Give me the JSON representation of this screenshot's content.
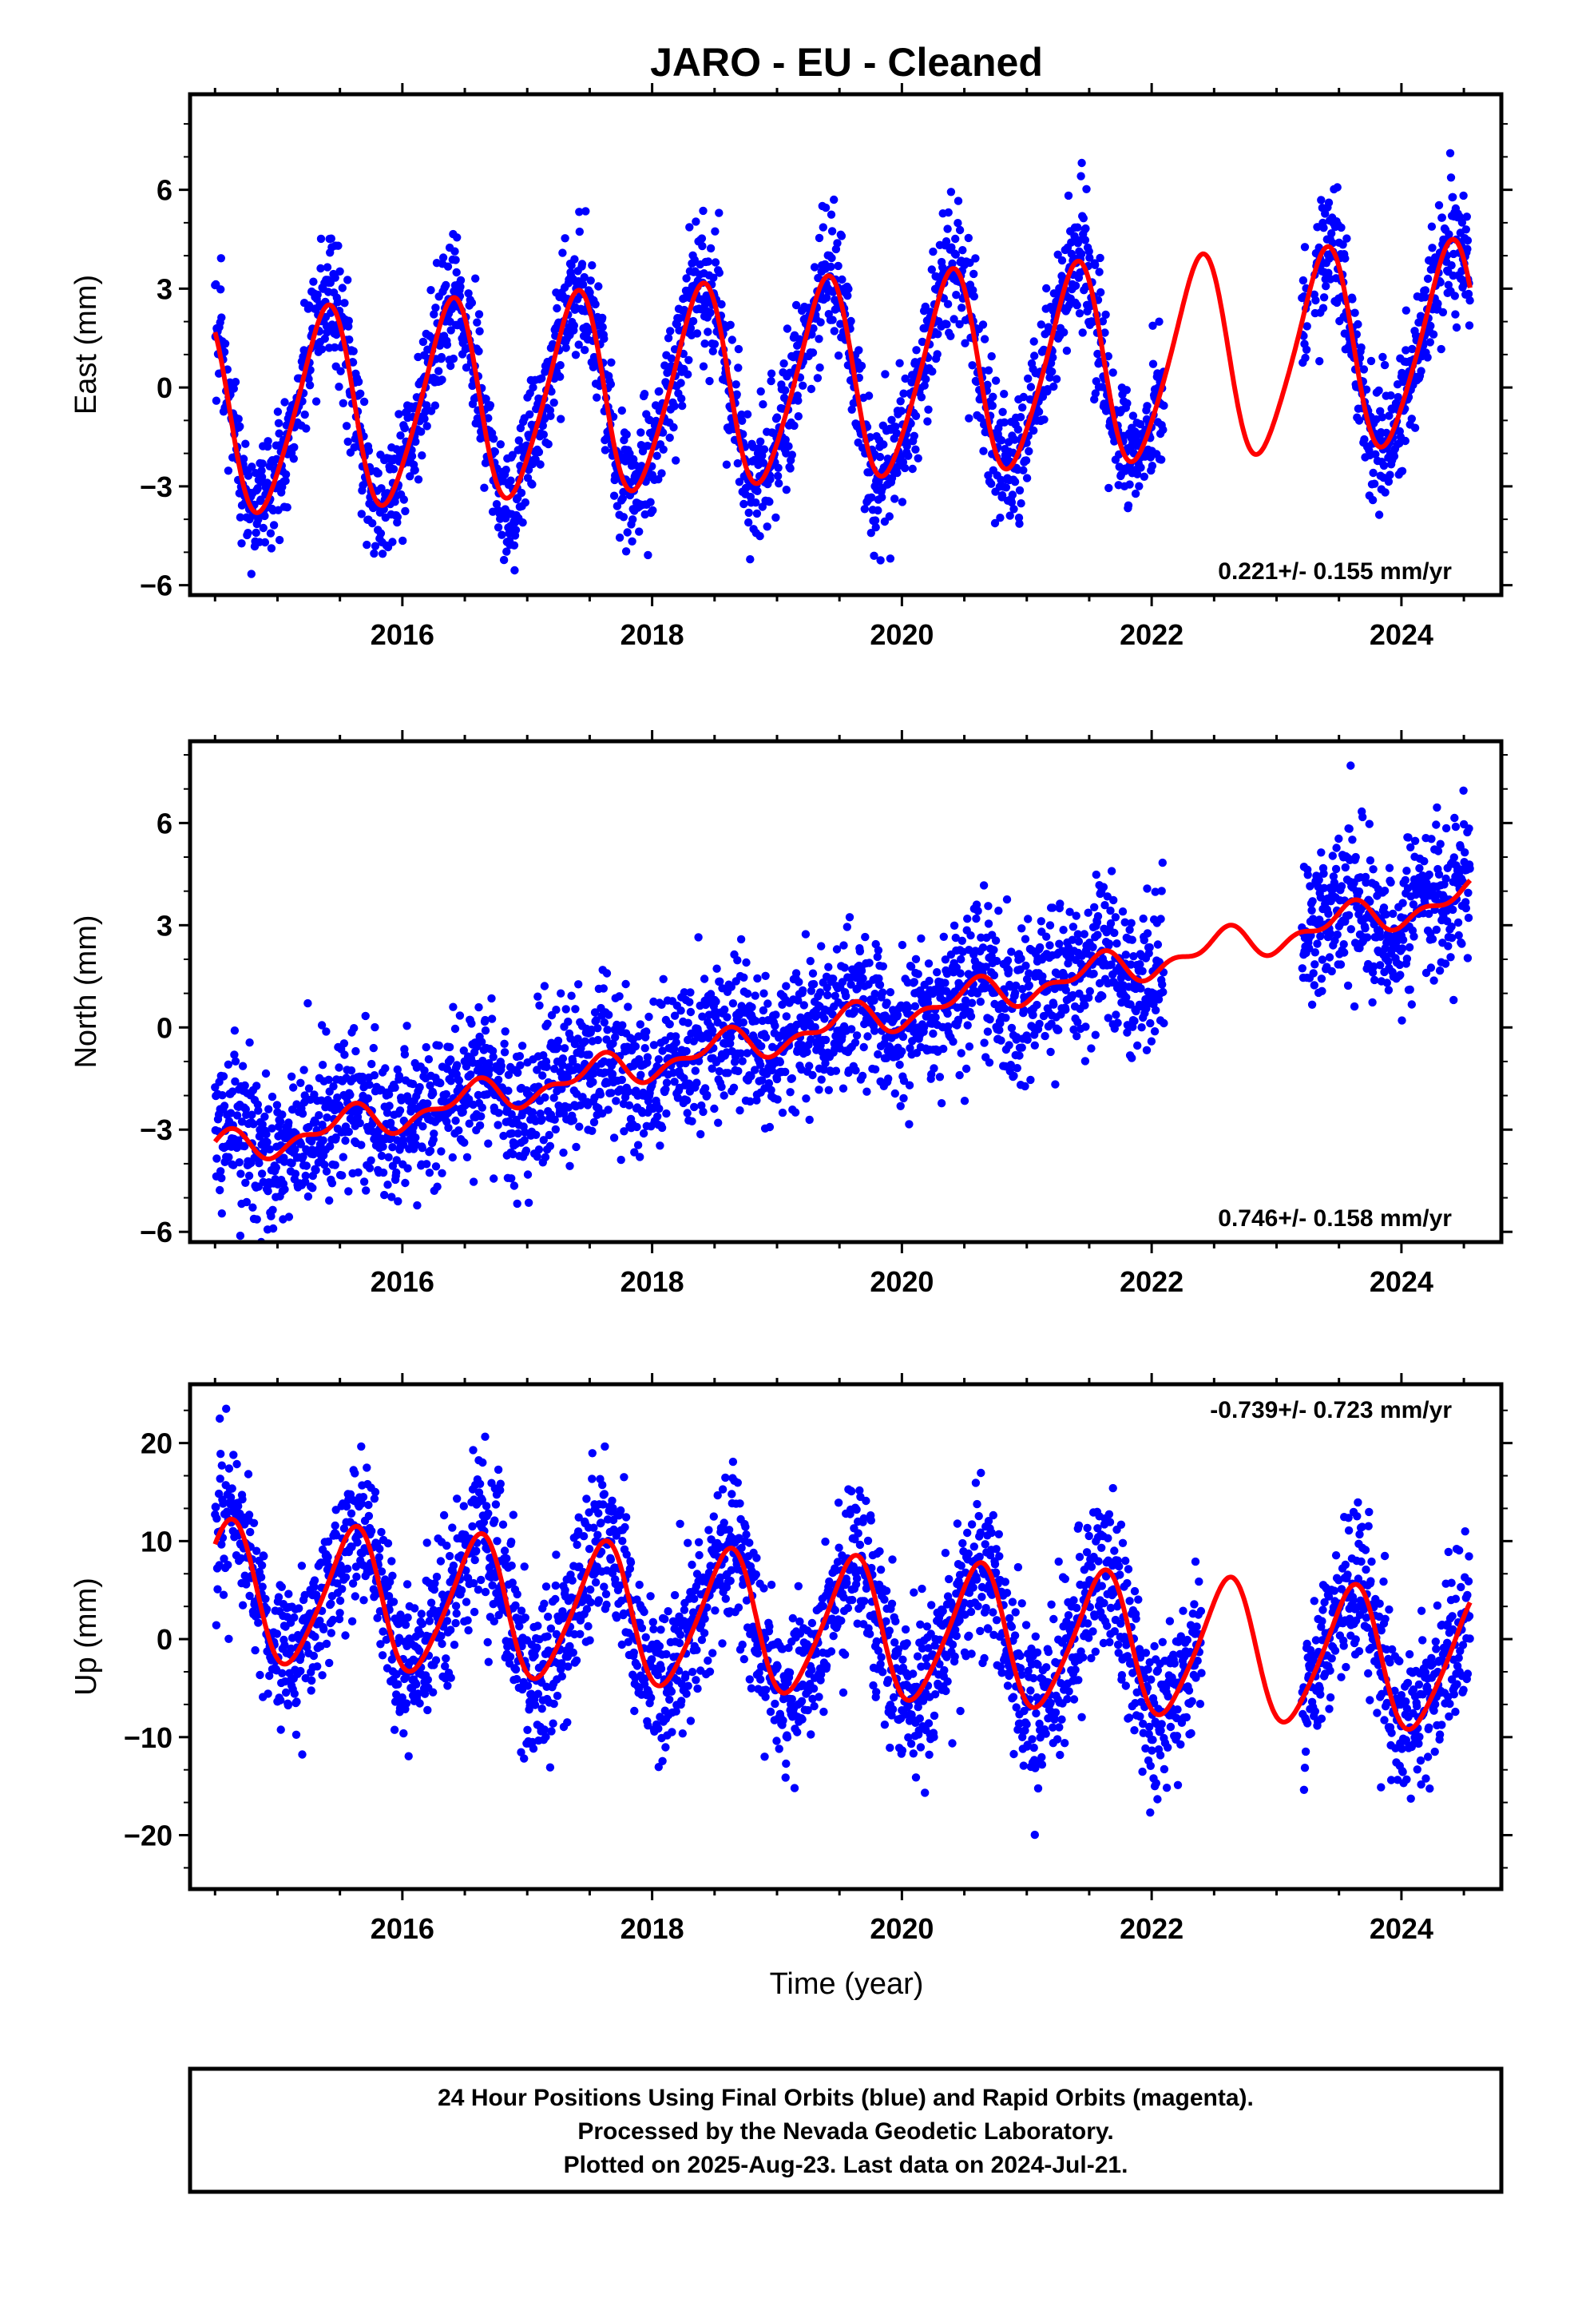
{
  "title": "JARO  - EU - Cleaned",
  "colors": {
    "points": "#0000ff",
    "fit": "#ff0000",
    "frame": "#000000"
  },
  "footer": {
    "lines": [
      "24 Hour Positions Using Final Orbits (blue) and Rapid Orbits (magenta).",
      "Processed by the Nevada Geodetic Laboratory.",
      "Plotted on 2025-Aug-23. Last data on 2024-Jul-21."
    ]
  },
  "chart_data": [
    {
      "type": "scatter",
      "component": "east",
      "ylabel": "East (mm)",
      "xlabel": "",
      "x_range": [
        2014.3,
        2024.8
      ],
      "ylim": [
        -6.3,
        8.9
      ],
      "x_ticks": [
        2016,
        2018,
        2020,
        2022,
        2024
      ],
      "y_ticks": [
        -6,
        -3,
        0,
        3,
        6
      ],
      "rate_label": "0.221+/- 0.155 mm/yr",
      "rate_position": "bottom-right",
      "data_start": 2014.5,
      "data_end": 2024.55,
      "gaps": [
        [
          2022.1,
          2023.2
        ],
        [
          2023.25,
          2023.3
        ]
      ],
      "series": [
        {
          "name": "Final Orbits (blue)",
          "kind": "points",
          "noise_mm": 1.0
        },
        {
          "kind": "fit",
          "intercept_2019": 0.1,
          "rate_mm_per_yr": 0.221,
          "annual_amp_mm": 3.0,
          "annual_peak_phase": 0.38,
          "semiannual_amp_mm": 0.4
        }
      ]
    },
    {
      "type": "scatter",
      "component": "north",
      "ylabel": "North (mm)",
      "xlabel": "",
      "x_range": [
        2014.3,
        2024.8
      ],
      "ylim": [
        -6.3,
        8.4
      ],
      "x_ticks": [
        2016,
        2018,
        2020,
        2022,
        2024
      ],
      "y_ticks": [
        -6,
        -3,
        0,
        3,
        6
      ],
      "rate_label": "0.746+/- 0.158 mm/yr",
      "rate_position": "bottom-right",
      "data_start": 2014.5,
      "data_end": 2024.55,
      "gaps": [
        [
          2022.1,
          2023.2
        ]
      ],
      "series": [
        {
          "name": "Final Orbits (blue)",
          "kind": "points",
          "noise_mm": 1.1
        },
        {
          "kind": "fit",
          "intercept_2019": -0.3,
          "rate_mm_per_yr": 0.746,
          "annual_amp_mm": 0.4,
          "annual_peak_phase": 0.55,
          "semiannual_amp_mm": 0.25
        }
      ]
    },
    {
      "type": "scatter",
      "component": "up",
      "ylabel": "Up (mm)",
      "xlabel": "Time (year)",
      "x_range": [
        2014.3,
        2024.8
      ],
      "ylim": [
        -25.5,
        26.0
      ],
      "x_ticks": [
        2016,
        2018,
        2020,
        2022,
        2024
      ],
      "y_ticks": [
        -20,
        -10,
        0,
        10,
        20
      ],
      "rate_label": "-0.739+/- 0.723 mm/yr",
      "rate_position": "top-right",
      "data_start": 2014.5,
      "data_end": 2024.55,
      "gaps": [
        [
          2022.4,
          2023.2
        ]
      ],
      "series": [
        {
          "name": "Final Orbits (blue)",
          "kind": "points",
          "noise_mm": 4.0
        },
        {
          "kind": "fit",
          "intercept_2019": 1.5,
          "rate_mm_per_yr": -0.739,
          "annual_amp_mm": 7.0,
          "annual_peak_phase": 0.6,
          "semiannual_amp_mm": 1.0
        }
      ]
    }
  ]
}
